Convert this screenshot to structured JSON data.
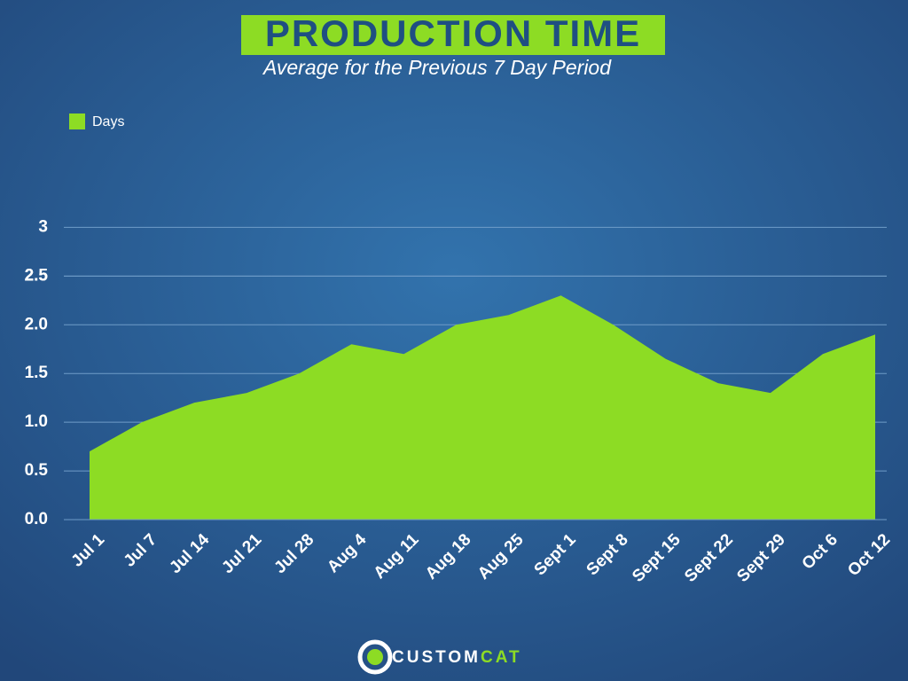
{
  "chart_data": {
    "type": "area",
    "title": "PRODUCTION TIME",
    "subtitle": "Average for the Previous 7 Day Period",
    "categories": [
      "Jul 1",
      "Jul 7",
      "Jul 14",
      "Jul 21",
      "Jul 28",
      "Aug 4",
      "Aug 11",
      "Aug 18",
      "Aug 25",
      "Sept 1",
      "Sept 8",
      "Sept 15",
      "Sept 22",
      "Sept 29",
      "Oct 6",
      "Oct 12"
    ],
    "series": [
      {
        "name": "Days",
        "color": "#8ddc24",
        "values": [
          0.7,
          1.0,
          1.2,
          1.3,
          1.5,
          1.8,
          1.7,
          2.0,
          2.1,
          2.3,
          2.0,
          1.65,
          1.4,
          1.3,
          1.7,
          1.9
        ]
      }
    ],
    "ylim": [
      0,
      3.75
    ],
    "yticks": [
      {
        "value": 0,
        "label": "0.0"
      },
      0.5,
      {
        "value": 1,
        "label": "1.0"
      },
      1.5,
      {
        "value": 2,
        "label": "2.0"
      },
      2.5,
      2.5,
      3
    ],
    "grid": true,
    "legend": "top-left"
  },
  "logo": {
    "left": "CUSTOM",
    "right": "CAT"
  }
}
